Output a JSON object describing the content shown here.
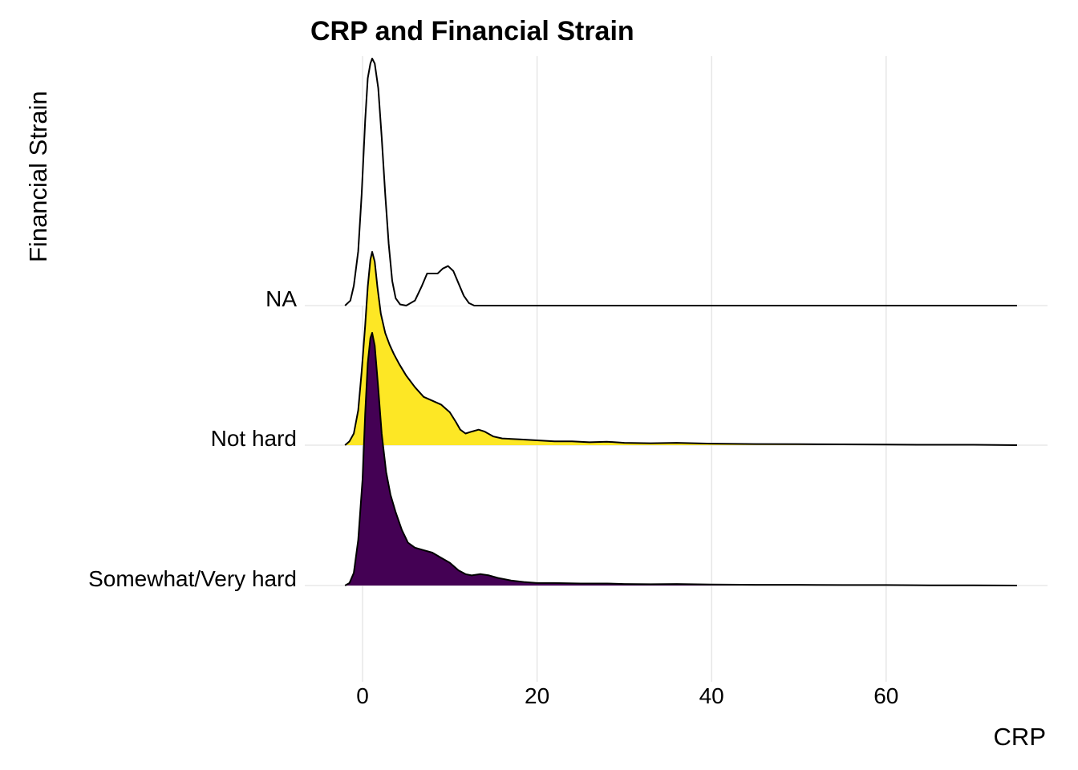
{
  "chart_data": {
    "type": "ridgeline",
    "title": "CRP and Financial Strain",
    "xlabel": "CRP",
    "ylabel": "Financial Strain",
    "xlim": [
      -3,
      79
    ],
    "x_ticks": [
      0,
      20,
      40,
      60
    ],
    "x_tick_labels": [
      "0",
      "20",
      "40",
      "60"
    ],
    "grid": true,
    "categories": [
      "Somewhat/Very hard",
      "Not hard",
      "NA"
    ],
    "series": [
      {
        "name": "Somewhat/Very hard",
        "fill": "#440154",
        "density": [
          [
            -2,
            0
          ],
          [
            -1.5,
            0.01
          ],
          [
            -1,
            0.05
          ],
          [
            -0.5,
            0.18
          ],
          [
            0,
            0.42
          ],
          [
            0.3,
            0.68
          ],
          [
            0.6,
            0.88
          ],
          [
            0.9,
            0.98
          ],
          [
            1.1,
            1.0
          ],
          [
            1.4,
            0.95
          ],
          [
            1.8,
            0.78
          ],
          [
            2.2,
            0.6
          ],
          [
            2.7,
            0.45
          ],
          [
            3.2,
            0.36
          ],
          [
            3.8,
            0.29
          ],
          [
            4.5,
            0.22
          ],
          [
            5.2,
            0.17
          ],
          [
            6,
            0.15
          ],
          [
            7,
            0.14
          ],
          [
            8,
            0.13
          ],
          [
            9,
            0.11
          ],
          [
            10,
            0.09
          ],
          [
            11,
            0.06
          ],
          [
            11.8,
            0.045
          ],
          [
            12.5,
            0.04
          ],
          [
            13.5,
            0.045
          ],
          [
            14.5,
            0.04
          ],
          [
            15.5,
            0.03
          ],
          [
            17,
            0.02
          ],
          [
            18.5,
            0.014
          ],
          [
            20,
            0.01
          ],
          [
            22,
            0.01
          ],
          [
            25,
            0.008
          ],
          [
            28,
            0.008
          ],
          [
            30,
            0.006
          ],
          [
            33,
            0.005
          ],
          [
            36,
            0.006
          ],
          [
            40,
            0.004
          ],
          [
            45,
            0.003
          ],
          [
            50,
            0.003
          ],
          [
            55,
            0.002
          ],
          [
            60,
            0.002
          ],
          [
            65,
            0.001
          ],
          [
            70,
            0.001
          ],
          [
            75,
            0
          ]
        ]
      },
      {
        "name": "Not hard",
        "fill": "#fde725",
        "density": [
          [
            -2,
            0
          ],
          [
            -1.5,
            0.02
          ],
          [
            -1,
            0.06
          ],
          [
            -0.5,
            0.18
          ],
          [
            -0.1,
            0.38
          ],
          [
            0.3,
            0.62
          ],
          [
            0.6,
            0.82
          ],
          [
            0.9,
            0.96
          ],
          [
            1.1,
            1.0
          ],
          [
            1.4,
            0.95
          ],
          [
            1.7,
            0.82
          ],
          [
            2.1,
            0.68
          ],
          [
            2.6,
            0.58
          ],
          [
            3.1,
            0.52
          ],
          [
            3.6,
            0.47
          ],
          [
            4.2,
            0.42
          ],
          [
            5,
            0.36
          ],
          [
            6,
            0.3
          ],
          [
            7,
            0.25
          ],
          [
            8,
            0.23
          ],
          [
            9,
            0.21
          ],
          [
            10,
            0.17
          ],
          [
            10.7,
            0.12
          ],
          [
            11.2,
            0.08
          ],
          [
            11.8,
            0.06
          ],
          [
            12.5,
            0.07
          ],
          [
            13.3,
            0.08
          ],
          [
            14,
            0.07
          ],
          [
            15,
            0.045
          ],
          [
            16,
            0.035
          ],
          [
            18,
            0.03
          ],
          [
            20,
            0.025
          ],
          [
            22,
            0.02
          ],
          [
            24,
            0.02
          ],
          [
            26,
            0.015
          ],
          [
            28,
            0.018
          ],
          [
            30,
            0.012
          ],
          [
            33,
            0.01
          ],
          [
            36,
            0.012
          ],
          [
            40,
            0.008
          ],
          [
            45,
            0.006
          ],
          [
            50,
            0.005
          ],
          [
            55,
            0.004
          ],
          [
            60,
            0.003
          ],
          [
            65,
            0.002
          ],
          [
            70,
            0.002
          ],
          [
            75,
            0
          ]
        ]
      },
      {
        "name": "NA",
        "fill": "#ffffff",
        "density": [
          [
            -2,
            0
          ],
          [
            -1.4,
            0.02
          ],
          [
            -1,
            0.08
          ],
          [
            -0.5,
            0.22
          ],
          [
            -0.1,
            0.45
          ],
          [
            0.3,
            0.75
          ],
          [
            0.6,
            0.92
          ],
          [
            0.9,
            0.98
          ],
          [
            1.1,
            1.0
          ],
          [
            1.4,
            0.98
          ],
          [
            1.8,
            0.88
          ],
          [
            2.2,
            0.68
          ],
          [
            2.6,
            0.45
          ],
          [
            3,
            0.25
          ],
          [
            3.4,
            0.1
          ],
          [
            3.8,
            0.03
          ],
          [
            4.3,
            0.005
          ],
          [
            5,
            0
          ],
          [
            6,
            0.02
          ],
          [
            6.8,
            0.08
          ],
          [
            7.4,
            0.13
          ],
          [
            8,
            0.13
          ],
          [
            8.6,
            0.13
          ],
          [
            9.2,
            0.15
          ],
          [
            9.8,
            0.16
          ],
          [
            10.4,
            0.14
          ],
          [
            11,
            0.09
          ],
          [
            11.6,
            0.04
          ],
          [
            12.2,
            0.01
          ],
          [
            12.8,
            0
          ],
          [
            20,
            0
          ],
          [
            40,
            0
          ],
          [
            60,
            0
          ],
          [
            75,
            0
          ]
        ]
      }
    ]
  }
}
